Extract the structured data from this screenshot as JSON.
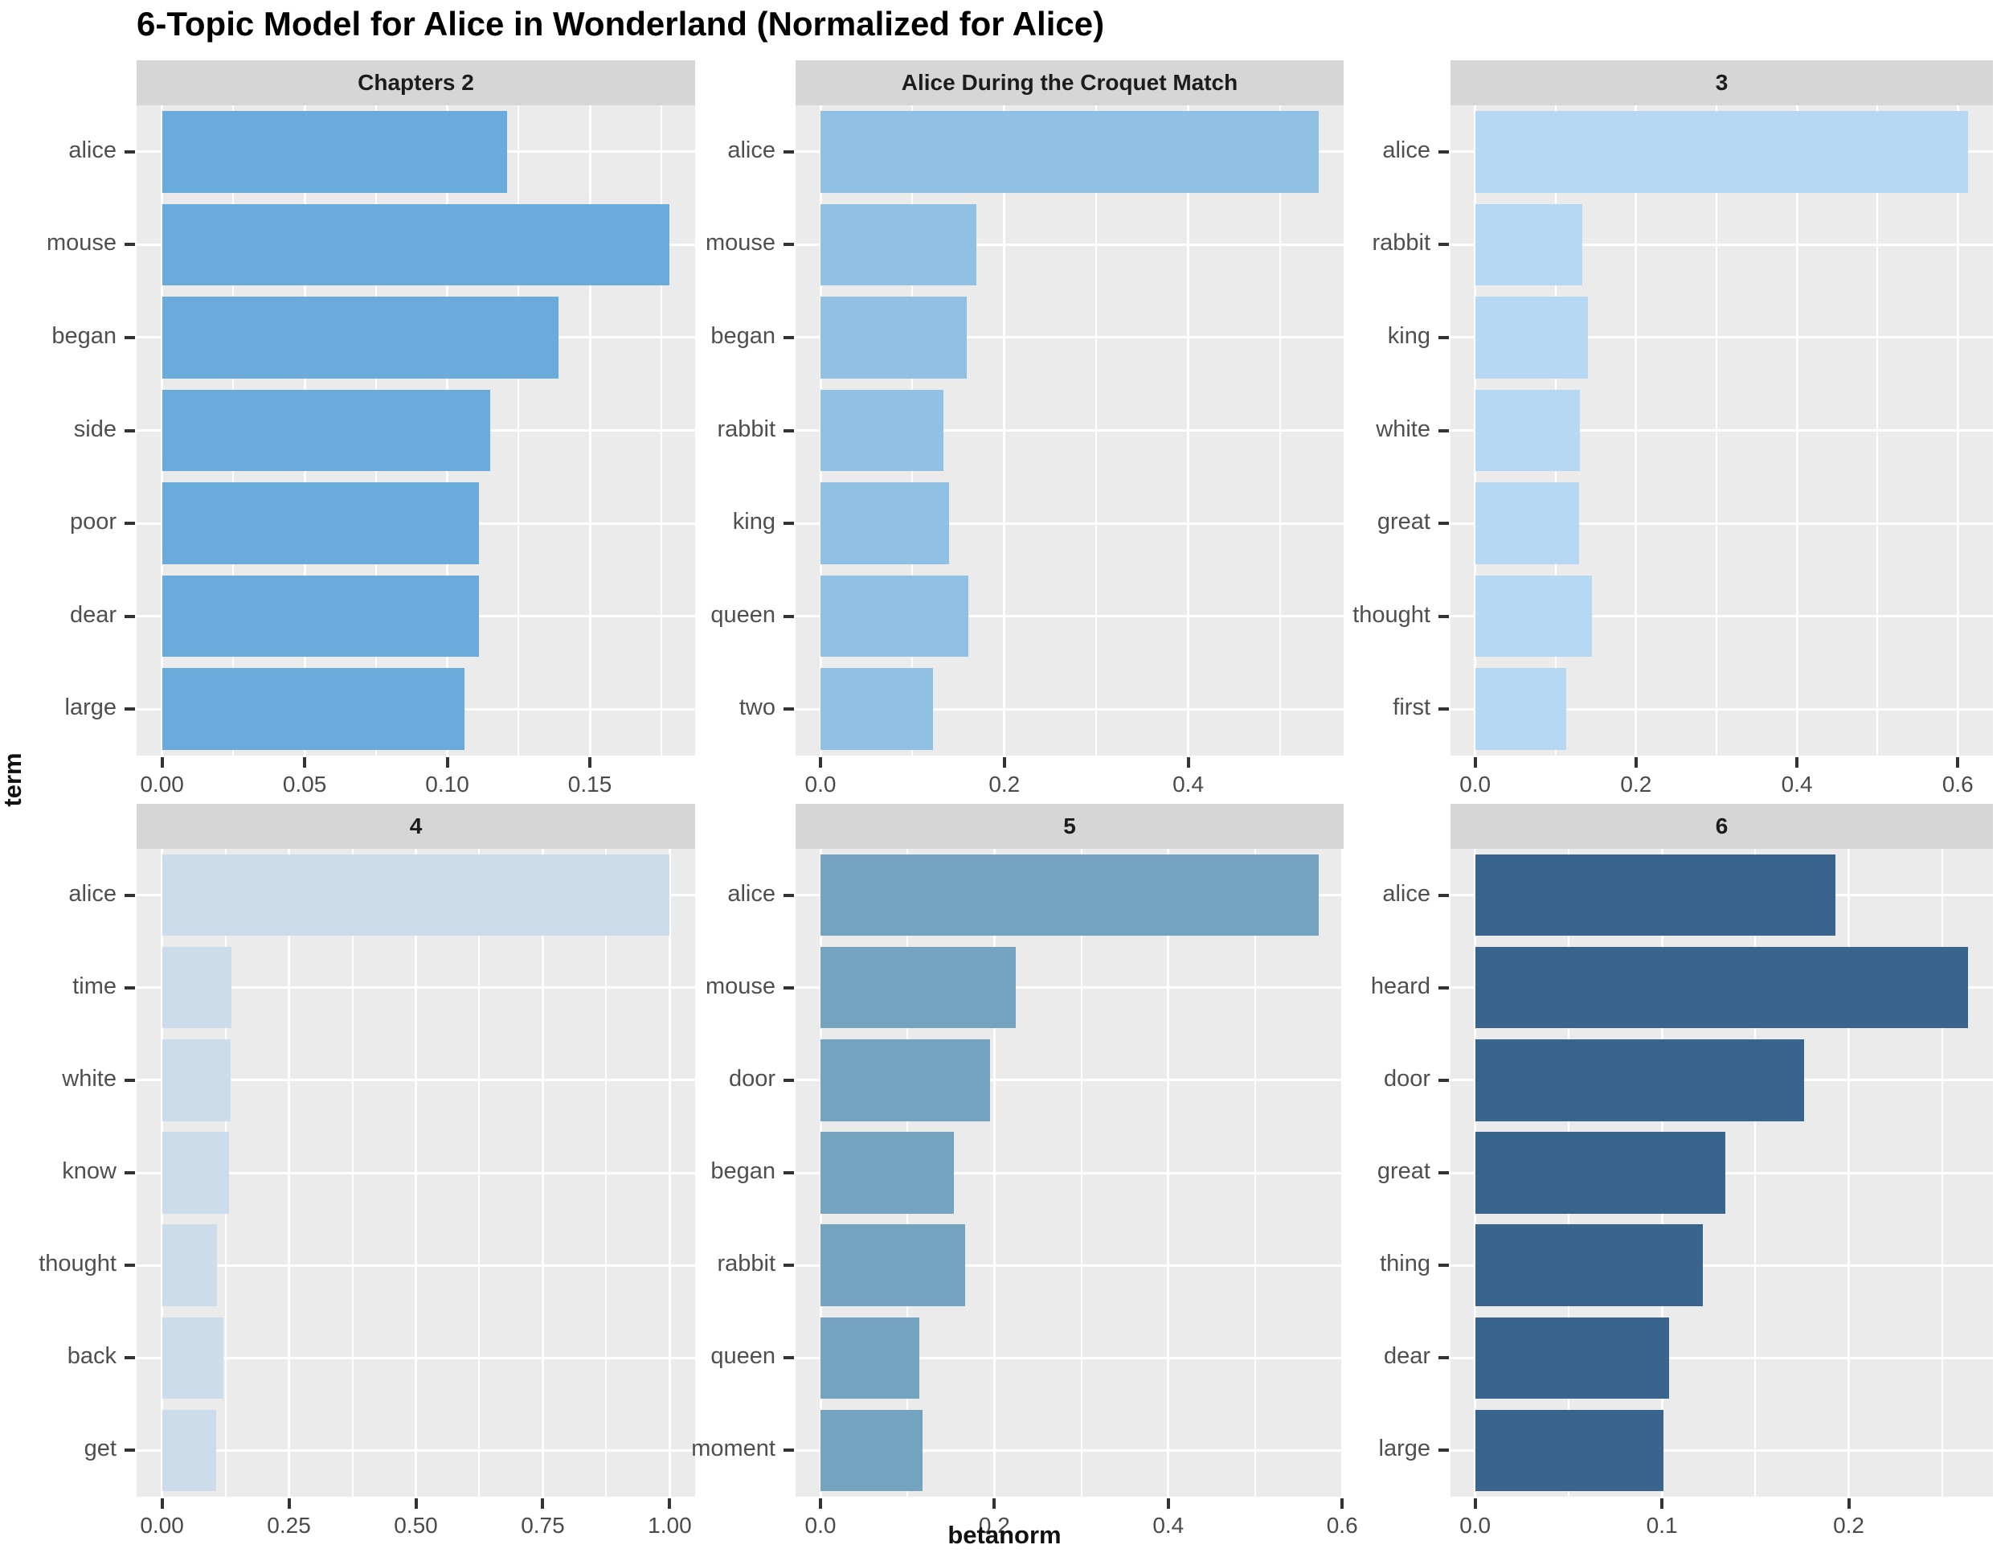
{
  "title": "6-Topic Model for Alice in Wonderland (Normalized for Alice)",
  "axes": {
    "y_label": "term",
    "x_label": "betanorm"
  },
  "colors": {
    "panel_bg": "#ebebeb",
    "strip_bg": "#d6d6d6",
    "gridline": "#ffffff",
    "tick_mark": "#333333",
    "term_text": "#4f4f4f",
    "axis_text": "#4a4a4a"
  },
  "chart_data": [
    {
      "type": "bar",
      "orientation": "horizontal",
      "facet_title": "Chapters 2",
      "bar_color": "#6aabdc",
      "categories": [
        "alice",
        "mouse",
        "began",
        "side",
        "poor",
        "dear",
        "large"
      ],
      "values": [
        0.121,
        0.178,
        0.139,
        0.115,
        0.111,
        0.111,
        0.106
      ],
      "xlabel": "betanorm",
      "ylabel": "term",
      "tick_values": [
        0,
        0.05,
        0.1,
        0.15
      ],
      "tick_labels": [
        "0.00",
        "0.05",
        "0.10",
        "0.15"
      ]
    },
    {
      "type": "bar",
      "orientation": "horizontal",
      "facet_title": "Alice During the Croquet Match",
      "bar_color": "#90c0e4",
      "categories": [
        "alice",
        "mouse",
        "began",
        "rabbit",
        "king",
        "queen",
        "two"
      ],
      "values": [
        0.542,
        0.17,
        0.159,
        0.134,
        0.14,
        0.161,
        0.122
      ],
      "xlabel": "betanorm",
      "ylabel": "term",
      "tick_values": [
        0,
        0.2,
        0.4
      ],
      "tick_labels": [
        "0.0",
        "0.2",
        "0.4"
      ]
    },
    {
      "type": "bar",
      "orientation": "horizontal",
      "facet_title": "3",
      "bar_color": "#b7d8f3",
      "categories": [
        "alice",
        "rabbit",
        "king",
        "white",
        "great",
        "thought",
        "first"
      ],
      "values": [
        0.613,
        0.133,
        0.14,
        0.13,
        0.129,
        0.145,
        0.113
      ],
      "xlabel": "betanorm",
      "ylabel": "term",
      "tick_values": [
        0,
        0.2,
        0.4,
        0.6
      ],
      "tick_labels": [
        "0.0",
        "0.2",
        "0.4",
        "0.6"
      ]
    },
    {
      "type": "bar",
      "orientation": "horizontal",
      "facet_title": "4",
      "bar_color": "#ccdcea",
      "categories": [
        "alice",
        "time",
        "white",
        "know",
        "thought",
        "back",
        "get"
      ],
      "values": [
        1.0,
        0.137,
        0.135,
        0.132,
        0.108,
        0.121,
        0.106
      ],
      "xlabel": "betanorm",
      "ylabel": "term",
      "tick_values": [
        0,
        0.25,
        0.5,
        0.75,
        1.0
      ],
      "tick_labels": [
        "0.00",
        "0.25",
        "0.50",
        "0.75",
        "1.00"
      ]
    },
    {
      "type": "bar",
      "orientation": "horizontal",
      "facet_title": "5",
      "bar_color": "#74a3c0",
      "categories": [
        "alice",
        "mouse",
        "door",
        "began",
        "rabbit",
        "queen",
        "moment"
      ],
      "values": [
        0.573,
        0.225,
        0.195,
        0.153,
        0.166,
        0.114,
        0.117
      ],
      "xlabel": "betanorm",
      "ylabel": "term",
      "tick_values": [
        0,
        0.2,
        0.4,
        0.6
      ],
      "tick_labels": [
        "0.0",
        "0.2",
        "0.4",
        "0.6"
      ]
    },
    {
      "type": "bar",
      "orientation": "horizontal",
      "facet_title": "6",
      "bar_color": "#38648e",
      "categories": [
        "alice",
        "heard",
        "door",
        "great",
        "thing",
        "dear",
        "large"
      ],
      "values": [
        0.193,
        0.264,
        0.176,
        0.134,
        0.122,
        0.104,
        0.101
      ],
      "xlabel": "betanorm",
      "ylabel": "term",
      "tick_values": [
        0,
        0.1,
        0.2
      ],
      "tick_labels": [
        "0.0",
        "0.1",
        "0.2"
      ]
    }
  ]
}
